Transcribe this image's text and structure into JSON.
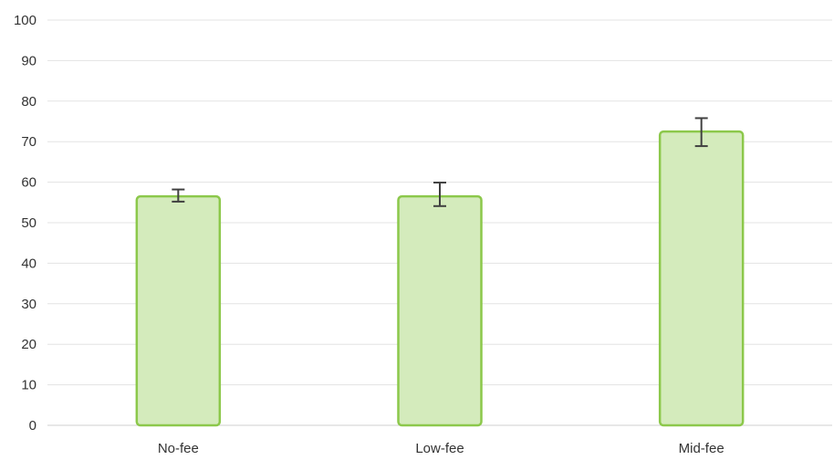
{
  "chart_data": {
    "type": "bar",
    "title": "",
    "xlabel": "",
    "ylabel": "",
    "categories": [
      "No-fee",
      "Low-fee",
      "Mid-fee"
    ],
    "values": [
      56.5,
      56.5,
      72.5
    ],
    "error_bars": [
      {
        "low": 55.2,
        "high": 58.2
      },
      {
        "low": 54.1,
        "high": 59.9
      },
      {
        "low": 68.9,
        "high": 75.8
      }
    ],
    "ylim": [
      0,
      100
    ],
    "yticks": [
      "0",
      "10",
      "20",
      "30",
      "40",
      "50",
      "60",
      "70",
      "80",
      "90",
      "100"
    ],
    "grid": true,
    "legend": "none",
    "colors": {
      "bar_fill": "#d4ebbc",
      "bar_stroke": "#8cc84b",
      "error_bar": "#404040"
    }
  }
}
